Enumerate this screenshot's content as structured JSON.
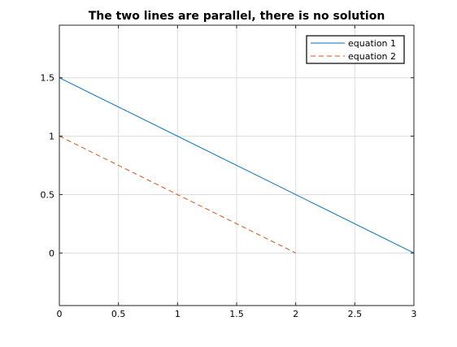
{
  "chart_data": {
    "type": "line",
    "title": "The two lines are parallel, there is no solution",
    "xlabel": "",
    "ylabel": "",
    "xlim": [
      0,
      3
    ],
    "ylim": [
      -0.45,
      1.95
    ],
    "xticks": [
      0,
      0.5,
      1,
      1.5,
      2,
      2.5,
      3
    ],
    "xtick_labels": [
      "0",
      "0.5",
      "1",
      "1.5",
      "2",
      "2.5",
      "3"
    ],
    "yticks": [
      0,
      0.5,
      1,
      1.5
    ],
    "ytick_labels": [
      "0",
      "0.5",
      "1",
      "1.5"
    ],
    "grid": true,
    "legend_position": "top-right",
    "series": [
      {
        "name": "equation 1",
        "color": "#0072BD",
        "style": "solid",
        "x": [
          0,
          3
        ],
        "y": [
          1.5,
          0
        ]
      },
      {
        "name": "equation 2",
        "color": "#D95319",
        "style": "dashed",
        "x": [
          0,
          2
        ],
        "y": [
          1,
          0
        ]
      }
    ]
  }
}
